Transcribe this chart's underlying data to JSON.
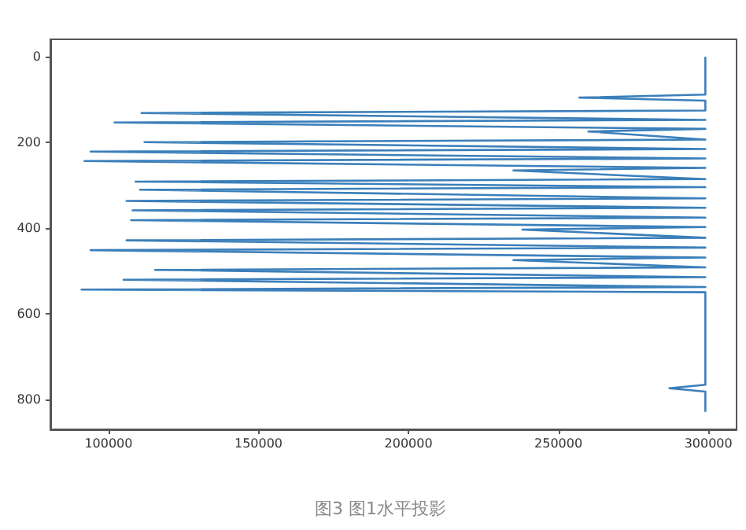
{
  "chart_data": {
    "type": "line",
    "annotations": [
      "图3 图1水平投影"
    ],
    "x": [
      299000,
      299000,
      257000,
      299000,
      299000,
      111000,
      299000,
      102000,
      299000,
      260000,
      299000,
      112000,
      299000,
      94000,
      299000,
      92000,
      299000,
      235000,
      299000,
      109000,
      299000,
      110500,
      299000,
      106000,
      299000,
      108000,
      299000,
      107500,
      299000,
      238000,
      299000,
      106000,
      299000,
      94000,
      299000,
      235000,
      299000,
      115500,
      299000,
      105000,
      299000,
      91000,
      299000,
      299000,
      287000,
      299000,
      299000
    ],
    "series": [
      {
        "color": "#3b7fba",
        "values": [
          0,
          88,
          95,
          102,
          125,
          131,
          147,
          153,
          168,
          174,
          193,
          199,
          215,
          221,
          237,
          243,
          259,
          265,
          285,
          291,
          304,
          310,
          330,
          336,
          352,
          358,
          375,
          381,
          397,
          403,
          422,
          428,
          445,
          451,
          468,
          474,
          491,
          497,
          514,
          520,
          537,
          543,
          549,
          765,
          773,
          781,
          828
        ]
      }
    ],
    "xlim": [
      80600,
      309400
    ],
    "xticks": [
      100000,
      150000,
      200000,
      250000,
      300000
    ],
    "ylim": [
      869,
      -41
    ],
    "yticks": [
      0,
      200,
      400,
      600,
      800
    ],
    "grid": false,
    "marker": "none",
    "line_style": "solid"
  }
}
